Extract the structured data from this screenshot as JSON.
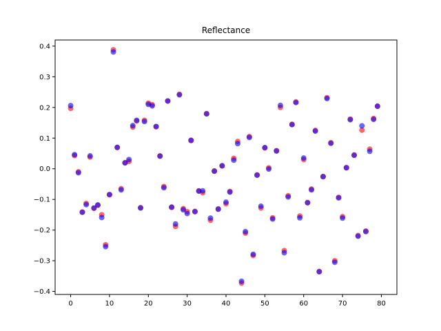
{
  "chart_data": {
    "type": "scatter",
    "title": "Reflectance",
    "xlabel": "",
    "ylabel": "",
    "xlim": [
      -4,
      84
    ],
    "ylim": [
      -0.41,
      0.42
    ],
    "xticks": [
      0,
      10,
      20,
      30,
      40,
      50,
      60,
      70,
      80
    ],
    "yticks": [
      -0.4,
      -0.3,
      -0.2,
      -0.1,
      0.0,
      0.1,
      0.2,
      0.3,
      0.4
    ],
    "ytick_labels": [
      "−0.4",
      "−0.3",
      "−0.2",
      "−0.1",
      "0.0",
      "0.1",
      "0.2",
      "0.3",
      "0.4"
    ],
    "grid": false,
    "series": [
      {
        "color": "#ff0000",
        "opacity": 0.6,
        "x": [
          0,
          1,
          2,
          3,
          4,
          5,
          6,
          7,
          8,
          9,
          10,
          11,
          12,
          13,
          14,
          15,
          16,
          17,
          18,
          19,
          20,
          21,
          22,
          23,
          24,
          25,
          26,
          27,
          28,
          29,
          30,
          31,
          32,
          33,
          34,
          35,
          36,
          37,
          38,
          39,
          40,
          41,
          42,
          43,
          44,
          45,
          46,
          47,
          48,
          49,
          50,
          51,
          52,
          53,
          54,
          55,
          56,
          57,
          58,
          59,
          60,
          61,
          62,
          63,
          64,
          65,
          66,
          67,
          68,
          69,
          70,
          71,
          72,
          73,
          74,
          75,
          76,
          77,
          78,
          79
        ],
        "y": [
          0.197,
          0.043,
          -0.01,
          -0.141,
          -0.113,
          0.038,
          -0.129,
          -0.119,
          -0.15,
          -0.248,
          -0.085,
          0.388,
          0.069,
          -0.065,
          0.02,
          0.024,
          0.136,
          0.156,
          -0.127,
          0.158,
          0.214,
          0.209,
          0.137,
          0.042,
          -0.058,
          0.221,
          -0.126,
          -0.188,
          0.243,
          -0.13,
          -0.14,
          0.092,
          -0.139,
          -0.072,
          -0.078,
          0.18,
          -0.168,
          -0.007,
          -0.131,
          0.009,
          -0.114,
          -0.074,
          0.034,
          0.089,
          -0.373,
          -0.21,
          0.105,
          -0.283,
          -0.02,
          -0.128,
          0.068,
          0.003,
          -0.16,
          0.059,
          0.2,
          -0.267,
          -0.088,
          0.145,
          0.218,
          -0.154,
          0.03,
          -0.11,
          -0.066,
          0.125,
          -0.335,
          -0.025,
          0.232,
          0.085,
          -0.3,
          -0.093,
          -0.156,
          0.004,
          0.162,
          0.045,
          -0.218,
          0.126,
          -0.203,
          0.064,
          0.164,
          0.204
        ]
      },
      {
        "color": "#0000ff",
        "opacity": 0.6,
        "x": [
          0,
          1,
          2,
          3,
          4,
          5,
          6,
          7,
          8,
          9,
          10,
          11,
          12,
          13,
          14,
          15,
          16,
          17,
          18,
          19,
          20,
          21,
          22,
          23,
          24,
          25,
          26,
          27,
          28,
          29,
          30,
          31,
          32,
          33,
          34,
          35,
          36,
          37,
          38,
          39,
          40,
          41,
          42,
          43,
          44,
          45,
          46,
          47,
          48,
          49,
          50,
          51,
          52,
          53,
          54,
          55,
          56,
          57,
          58,
          59,
          60,
          61,
          62,
          63,
          64,
          65,
          66,
          67,
          68,
          69,
          70,
          71,
          72,
          73,
          74,
          75,
          76,
          77,
          78,
          79
        ],
        "y": [
          0.206,
          0.046,
          -0.013,
          -0.142,
          -0.117,
          0.042,
          -0.128,
          -0.118,
          -0.159,
          -0.254,
          -0.084,
          0.381,
          0.07,
          -0.069,
          0.019,
          0.03,
          0.141,
          0.158,
          -0.128,
          0.154,
          0.21,
          0.205,
          0.138,
          0.041,
          -0.062,
          0.221,
          -0.125,
          -0.18,
          0.241,
          -0.134,
          -0.146,
          0.093,
          -0.14,
          -0.073,
          -0.072,
          0.179,
          -0.161,
          -0.008,
          -0.132,
          0.01,
          -0.109,
          -0.076,
          0.028,
          0.082,
          -0.367,
          -0.205,
          0.102,
          -0.279,
          -0.021,
          -0.122,
          0.069,
          -0.001,
          -0.164,
          0.058,
          0.207,
          -0.274,
          -0.092,
          0.144,
          0.216,
          -0.16,
          0.035,
          -0.111,
          -0.069,
          0.123,
          -0.336,
          -0.026,
          0.229,
          0.083,
          -0.305,
          -0.095,
          -0.161,
          0.003,
          0.16,
          0.044,
          -0.22,
          0.14,
          -0.205,
          0.057,
          0.161,
          0.204
        ]
      }
    ]
  }
}
